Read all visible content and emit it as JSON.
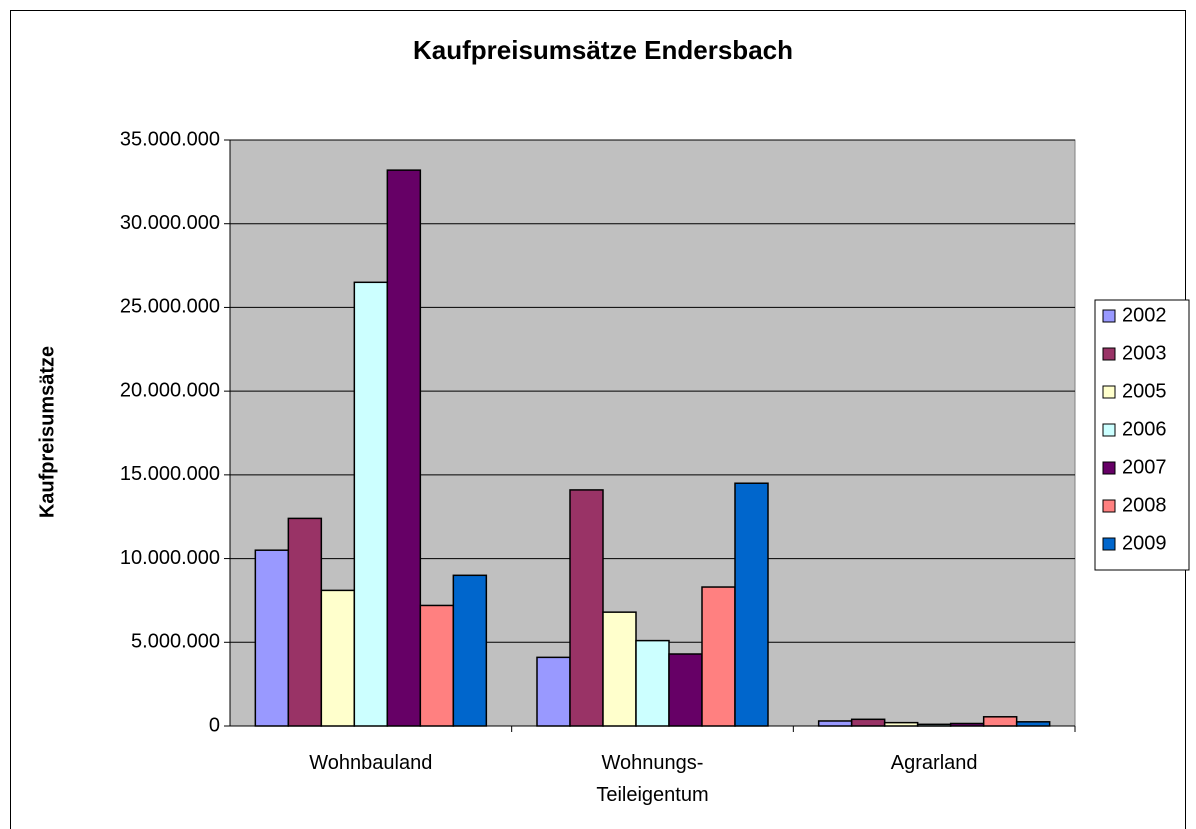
{
  "chart_data": {
    "type": "bar",
    "title": "Kaufpreisumsätze Endersbach",
    "y_label": "Kaufpreisumsätze",
    "categories": [
      "Wohnbauland",
      "Wohnungs-\nTeileigentum",
      "Agrarland"
    ],
    "series": [
      {
        "name": "2002",
        "color": "#9999ff",
        "values": [
          10500000,
          4100000,
          300000
        ]
      },
      {
        "name": "2003",
        "color": "#993366",
        "values": [
          12400000,
          14100000,
          400000
        ]
      },
      {
        "name": "2005",
        "color": "#ffffcc",
        "values": [
          8100000,
          6800000,
          200000
        ]
      },
      {
        "name": "2006",
        "color": "#ccffff",
        "values": [
          26500000,
          5100000,
          100000
        ]
      },
      {
        "name": "2007",
        "color": "#660066",
        "values": [
          33200000,
          4300000,
          150000
        ]
      },
      {
        "name": "2008",
        "color": "#ff8080",
        "values": [
          7200000,
          8300000,
          550000
        ]
      },
      {
        "name": "2009",
        "color": "#0066cc",
        "values": [
          9000000,
          14500000,
          250000
        ]
      }
    ],
    "ylim": [
      0,
      35000000
    ],
    "yticks": [
      0,
      {
        "value": 5000000,
        "label": "5.000.000"
      },
      {
        "value": 10000000,
        "label": "10.000.000"
      },
      {
        "value": 15000000,
        "label": "15.000.000"
      },
      {
        "value": 20000000,
        "label": "20.000.000"
      },
      {
        "value": 25000000,
        "label": "25.000.000"
      },
      {
        "value": 30000000,
        "label": "30.000.000"
      },
      {
        "value": 35000000,
        "label": "35.000.000"
      }
    ],
    "grid": true,
    "plot_background": "#c0c0c0",
    "legend": "right"
  }
}
